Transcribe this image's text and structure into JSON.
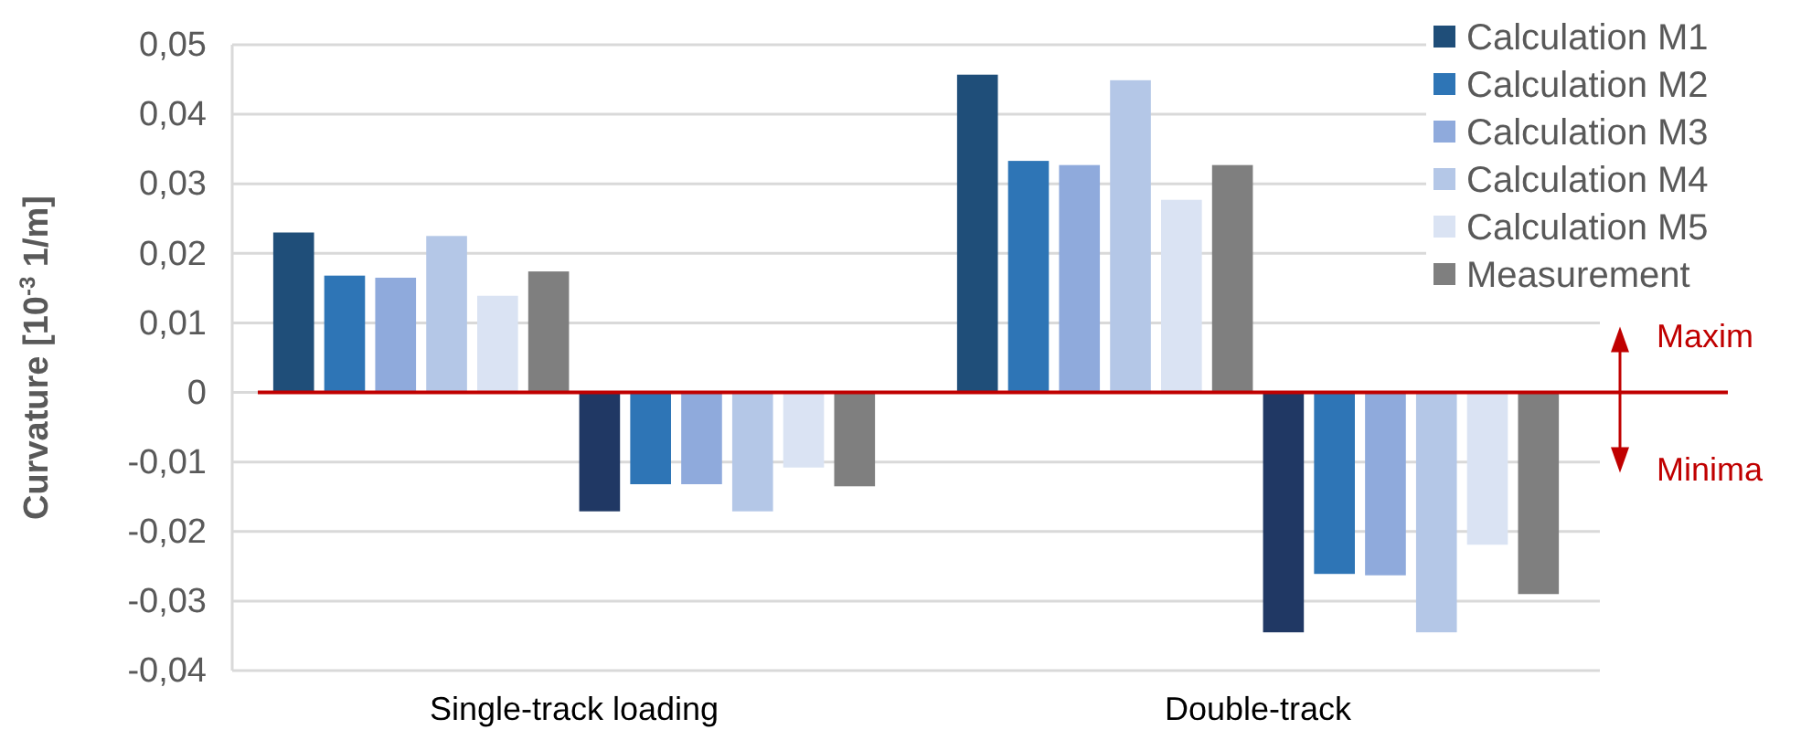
{
  "chart_data": {
    "type": "bar",
    "ylabel": "Curvature [10$^{-3}$ 1/m]",
    "categories": [
      "Single-track loading",
      "Double-track"
    ],
    "series": [
      {
        "name": "Calculation M1",
        "color": "#1f4e79",
        "values": [
          0.023,
          0.0457
        ]
      },
      {
        "name": "Calculation M2",
        "color": "#2e75b6",
        "values": [
          0.0168,
          0.0333
        ]
      },
      {
        "name": "Calculation M3",
        "color": "#8faadc",
        "values": [
          0.0165,
          0.0327
        ]
      },
      {
        "name": "Calculation M4",
        "color": "#b4c7e7",
        "values": [
          0.0225,
          0.0449
        ]
      },
      {
        "name": "Calculation M5",
        "color": "#dae3f3",
        "values": [
          0.0139,
          0.0277
        ]
      },
      {
        "name": "Measurement",
        "color": "#7f7f7f",
        "values": [
          0.0174,
          0.0327
        ]
      },
      {
        "color": "#203864",
        "values": [
          -0.0171,
          -0.0345
        ]
      },
      {
        "color": "#2e75b6",
        "values": [
          -0.0132,
          -0.0261
        ]
      },
      {
        "color": "#8faadc",
        "values": [
          -0.0132,
          -0.0263
        ]
      },
      {
        "color": "#b4c7e7",
        "values": [
          -0.0171,
          -0.0345
        ]
      },
      {
        "color": "#dae3f3",
        "values": [
          -0.0108,
          -0.0219
        ]
      },
      {
        "color": "#7f7f7f",
        "values": [
          -0.0135,
          -0.029
        ]
      }
    ],
    "ylim": [
      -0.04,
      0.05
    ],
    "yticks": [
      {
        "value": -0.04,
        "label": "-0,04"
      },
      {
        "value": -0.03,
        "label": "-0,03"
      },
      {
        "value": -0.02,
        "label": "-0,02"
      },
      {
        "value": -0.01,
        "label": "-0,01"
      },
      0,
      {
        "value": 0.01,
        "label": "0,01"
      },
      {
        "value": 0.02,
        "label": "0,02"
      },
      {
        "value": 0.03,
        "label": "0,03"
      },
      {
        "value": 0.04,
        "label": "0,04"
      },
      {
        "value": 0.05,
        "label": "0,05"
      }
    ],
    "grid": "y",
    "legend": "top right",
    "ref_lines": [
      {
        "axis": "y",
        "value": 0,
        "color": "#c00000"
      }
    ],
    "annotations": [
      "Maxim",
      "Minima"
    ]
  }
}
